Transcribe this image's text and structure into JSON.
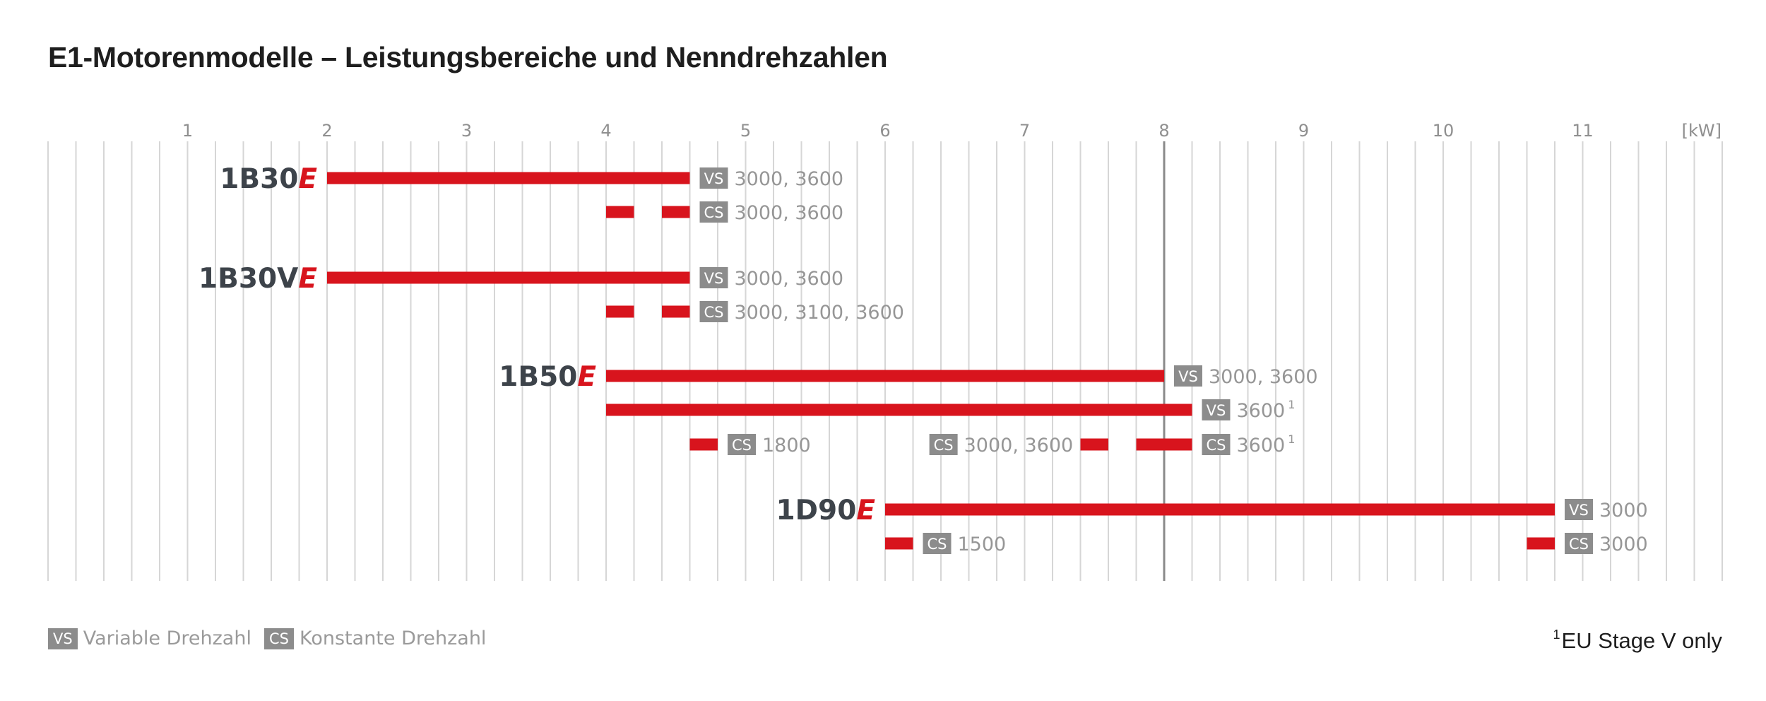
{
  "title": "E1-Motorenmodelle – Leistungsbereiche und Nenndrehzahlen",
  "colors": {
    "bar": "#d8141d",
    "badge": "#8c8c8c",
    "grid": "#d6d6d6",
    "highlight_line": "#8a8a8a",
    "label": "#3d434a"
  },
  "chart_data": {
    "type": "bar",
    "orientation": "horizontal-range",
    "x_unit": "[kW]",
    "xlim": [
      0,
      12
    ],
    "x_ticks": [
      1,
      2,
      3,
      4,
      5,
      6,
      7,
      8,
      9,
      10,
      11
    ],
    "highlight_x": 8,
    "grid": true,
    "models": [
      {
        "name": "1B30",
        "suffix": "E",
        "rows": [
          {
            "segments": [
              [
                2.0,
                4.6
              ]
            ],
            "labels": [
              {
                "x": 4.6,
                "badge": "VS",
                "text": "3000, 3600",
                "sup": ""
              }
            ]
          },
          {
            "segments": [
              [
                4.0,
                4.2
              ],
              [
                4.4,
                4.6
              ]
            ],
            "labels": [
              {
                "x": 4.6,
                "badge": "CS",
                "text": "3000, 3600",
                "sup": ""
              }
            ]
          }
        ]
      },
      {
        "name": "1B30V",
        "suffix": "E",
        "rows": [
          {
            "segments": [
              [
                2.0,
                4.6
              ]
            ],
            "labels": [
              {
                "x": 4.6,
                "badge": "VS",
                "text": "3000, 3600",
                "sup": ""
              }
            ]
          },
          {
            "segments": [
              [
                4.0,
                4.2
              ],
              [
                4.4,
                4.6
              ]
            ],
            "labels": [
              {
                "x": 4.6,
                "badge": "CS",
                "text": "3000, 3100, 3600",
                "sup": ""
              }
            ]
          }
        ]
      },
      {
        "name": "1B50",
        "suffix": "E",
        "rows": [
          {
            "segments": [
              [
                4.0,
                8.0
              ]
            ],
            "labels": [
              {
                "x": 8.0,
                "badge": "VS",
                "text": "3000, 3600",
                "sup": ""
              }
            ]
          },
          {
            "segments": [
              [
                4.0,
                8.2
              ]
            ],
            "labels": [
              {
                "x": 8.2,
                "badge": "VS",
                "text": "3600",
                "sup": "1"
              }
            ]
          },
          {
            "segments": [
              [
                4.6,
                4.8
              ],
              [
                7.4,
                7.6
              ],
              [
                7.8,
                8.2
              ]
            ],
            "labels": [
              {
                "x": 4.8,
                "badge": "CS",
                "text": "1800",
                "sup": ""
              },
              {
                "x": 7.35,
                "align": "end",
                "badge": "CS",
                "text": "3000, 3600",
                "sup": ""
              },
              {
                "x": 8.2,
                "badge": "CS",
                "text": "3600",
                "sup": "1"
              }
            ]
          }
        ]
      },
      {
        "name": "1D90",
        "suffix": "E",
        "rows": [
          {
            "segments": [
              [
                6.0,
                10.8
              ]
            ],
            "labels": [
              {
                "x": 10.8,
                "badge": "VS",
                "text": "3000",
                "sup": ""
              }
            ]
          },
          {
            "segments": [
              [
                6.0,
                6.2
              ],
              [
                10.6,
                10.8
              ]
            ],
            "labels": [
              {
                "x": 6.2,
                "badge": "CS",
                "text": "1500",
                "sup": ""
              },
              {
                "x": 10.8,
                "badge": "CS",
                "text": "3000",
                "sup": ""
              }
            ]
          }
        ]
      }
    ]
  },
  "legend": {
    "vs_badge": "VS",
    "vs_label": "Variable Drehzahl",
    "cs_badge": "CS",
    "cs_label": "Konstante Drehzahl"
  },
  "footnote": {
    "marker": "1",
    "text": "EU Stage V only"
  }
}
